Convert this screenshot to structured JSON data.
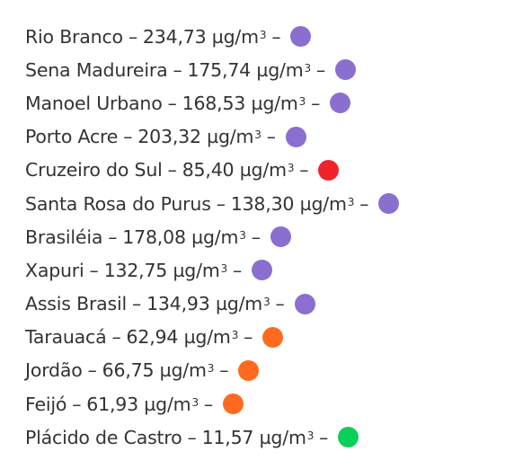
{
  "unit": "µg/m",
  "unit_exp": "3",
  "dash": "–",
  "colors": {
    "purple": "#8a6fd0",
    "red": "#f0232d",
    "orange": "#ff6a1e",
    "green": "#0ccf5a"
  },
  "items": [
    {
      "city": "Rio Branco",
      "value": "234,73",
      "level": "purple"
    },
    {
      "city": "Sena Madureira",
      "value": "175,74",
      "level": "purple"
    },
    {
      "city": "Manoel Urbano",
      "value": "168,53",
      "level": "purple"
    },
    {
      "city": "Porto Acre",
      "value": "203,32",
      "level": "purple"
    },
    {
      "city": "Cruzeiro do Sul",
      "value": "85,40",
      "level": "red"
    },
    {
      "city": "Santa Rosa do Purus",
      "value": "138,30",
      "level": "purple"
    },
    {
      "city": "Brasiléia",
      "value": "178,08",
      "level": "purple"
    },
    {
      "city": "Xapuri",
      "value": "132,75",
      "level": "purple"
    },
    {
      "city": "Assis Brasil",
      "value": "134,93",
      "level": "purple"
    },
    {
      "city": "Tarauacá",
      "value": "62,94",
      "level": "orange"
    },
    {
      "city": "Jordão",
      "value": "66,75",
      "level": "orange"
    },
    {
      "city": "Feijó",
      "value": "61,93",
      "level": "orange"
    },
    {
      "city": "Plácido de Castro",
      "value": "11,57",
      "level": "green"
    }
  ]
}
